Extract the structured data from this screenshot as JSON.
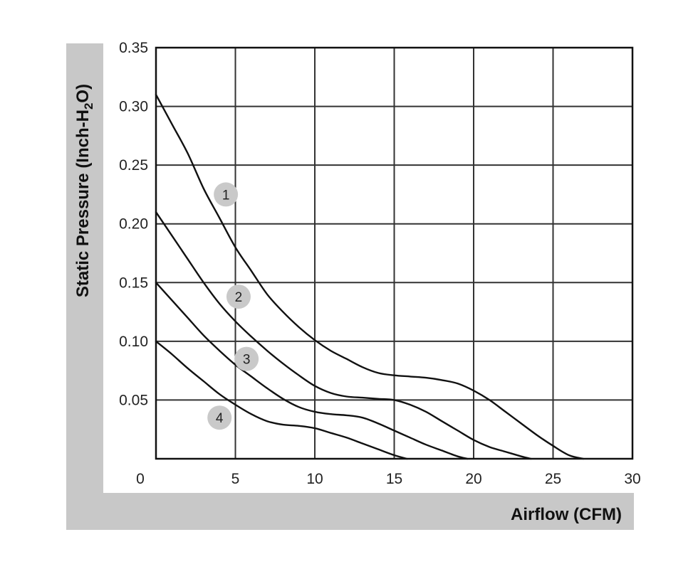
{
  "chart_data": {
    "type": "line",
    "xlabel": "Airflow (CFM)",
    "ylabel_parts": [
      "Static Pressure (Inch-H",
      "2",
      "O)"
    ],
    "xlim": [
      0,
      30
    ],
    "ylim": [
      0,
      0.35
    ],
    "x_ticks": [
      5,
      10,
      15,
      20,
      25,
      30
    ],
    "x_tick_labels": [
      "5",
      "10",
      "15",
      "20",
      "25",
      "30"
    ],
    "origin_label": "0",
    "y_ticks": [
      0.05,
      0.1,
      0.15,
      0.2,
      0.25,
      0.3,
      0.35
    ],
    "y_tick_labels": [
      "0.05",
      "0.10",
      "0.15",
      "0.20",
      "0.25",
      "0.30",
      "0.35"
    ],
    "grid": true,
    "colors": {
      "line": "#111111",
      "grid": "#333333",
      "band": "#c8c8c8",
      "badge": "#c9c9c9"
    },
    "series": [
      {
        "label": "1",
        "label_at": [
          4.4,
          0.225
        ],
        "points": [
          [
            0,
            0.31
          ],
          [
            1,
            0.285
          ],
          [
            2,
            0.26
          ],
          [
            3,
            0.23
          ],
          [
            4,
            0.205
          ],
          [
            5,
            0.18
          ],
          [
            6,
            0.16
          ],
          [
            7,
            0.14
          ],
          [
            8,
            0.125
          ],
          [
            9,
            0.112
          ],
          [
            10,
            0.101
          ],
          [
            11,
            0.092
          ],
          [
            12,
            0.085
          ],
          [
            13,
            0.078
          ],
          [
            14,
            0.073
          ],
          [
            15,
            0.071
          ],
          [
            16,
            0.07
          ],
          [
            17,
            0.069
          ],
          [
            18,
            0.067
          ],
          [
            19,
            0.064
          ],
          [
            20,
            0.058
          ],
          [
            21,
            0.05
          ],
          [
            22,
            0.04
          ],
          [
            23,
            0.03
          ],
          [
            24,
            0.02
          ],
          [
            25,
            0.011
          ],
          [
            26,
            0.003
          ],
          [
            26.9,
            0
          ]
        ]
      },
      {
        "label": "2",
        "label_at": [
          5.2,
          0.138
        ],
        "points": [
          [
            0,
            0.21
          ],
          [
            1,
            0.19
          ],
          [
            2,
            0.17
          ],
          [
            3,
            0.15
          ],
          [
            4,
            0.132
          ],
          [
            5,
            0.117
          ],
          [
            6,
            0.104
          ],
          [
            7,
            0.092
          ],
          [
            8,
            0.081
          ],
          [
            9,
            0.071
          ],
          [
            10,
            0.062
          ],
          [
            11,
            0.056
          ],
          [
            12,
            0.053
          ],
          [
            13,
            0.052
          ],
          [
            14,
            0.051
          ],
          [
            15,
            0.05
          ],
          [
            16,
            0.046
          ],
          [
            17,
            0.04
          ],
          [
            18,
            0.032
          ],
          [
            19,
            0.024
          ],
          [
            20,
            0.016
          ],
          [
            21,
            0.01
          ],
          [
            22,
            0.006
          ],
          [
            23,
            0.002
          ],
          [
            23.6,
            0
          ]
        ]
      },
      {
        "label": "3",
        "label_at": [
          5.7,
          0.085
        ],
        "points": [
          [
            0,
            0.15
          ],
          [
            1,
            0.135
          ],
          [
            2,
            0.12
          ],
          [
            3,
            0.105
          ],
          [
            4,
            0.092
          ],
          [
            5,
            0.08
          ],
          [
            6,
            0.07
          ],
          [
            7,
            0.06
          ],
          [
            8,
            0.051
          ],
          [
            9,
            0.044
          ],
          [
            10,
            0.04
          ],
          [
            11,
            0.038
          ],
          [
            12,
            0.037
          ],
          [
            13,
            0.035
          ],
          [
            14,
            0.03
          ],
          [
            15,
            0.024
          ],
          [
            16,
            0.018
          ],
          [
            17,
            0.012
          ],
          [
            18,
            0.007
          ],
          [
            19,
            0.002
          ],
          [
            19.6,
            0
          ]
        ]
      },
      {
        "label": "4",
        "label_at": [
          4,
          0.035
        ],
        "points": [
          [
            0,
            0.1
          ],
          [
            1,
            0.089
          ],
          [
            2,
            0.077
          ],
          [
            3,
            0.066
          ],
          [
            4,
            0.055
          ],
          [
            5,
            0.046
          ],
          [
            6,
            0.038
          ],
          [
            7,
            0.032
          ],
          [
            8,
            0.029
          ],
          [
            9,
            0.028
          ],
          [
            10,
            0.026
          ],
          [
            11,
            0.022
          ],
          [
            12,
            0.018
          ],
          [
            13,
            0.013
          ],
          [
            14,
            0.008
          ],
          [
            15,
            0.003
          ],
          [
            15.8,
            0
          ]
        ]
      }
    ]
  }
}
